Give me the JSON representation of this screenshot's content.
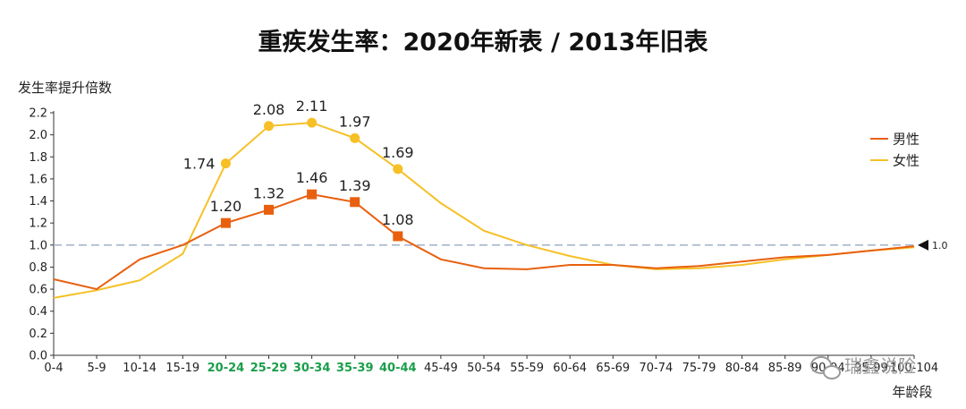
{
  "chart_data": {
    "type": "line",
    "title": "重疾发生率：2020年新表 / 2013年旧表",
    "ylabel": "发生率提升倍数",
    "xlabel": "年龄段",
    "ylim": [
      0,
      2.2
    ],
    "yticks": [
      "0.0",
      "0.2",
      "0.4",
      "0.6",
      "0.8",
      "1.0",
      "1.2",
      "1.4",
      "1.6",
      "1.8",
      "2.0",
      "2.2"
    ],
    "categories": [
      "0-4",
      "5-9",
      "10-14",
      "15-19",
      "20-24",
      "25-29",
      "30-34",
      "35-39",
      "40-44",
      "45-49",
      "50-54",
      "55-59",
      "60-64",
      "65-69",
      "70-74",
      "75-79",
      "80-84",
      "85-89",
      "90-94",
      "95-99",
      "100-104"
    ],
    "highlight_categories": [
      "20-24",
      "25-29",
      "30-34",
      "35-39",
      "40-44"
    ],
    "series": [
      {
        "name": "男性",
        "color": "#e8600f",
        "marker": "square",
        "values": [
          0.69,
          0.6,
          0.87,
          1.0,
          1.2,
          1.32,
          1.46,
          1.39,
          1.08,
          0.87,
          0.79,
          0.78,
          0.82,
          0.82,
          0.79,
          0.81,
          0.85,
          0.89,
          0.91,
          0.95,
          0.99
        ],
        "labels": [
          "",
          "",
          "",
          "",
          "1.20",
          "1.32",
          "1.46",
          "1.39",
          "1.08",
          "",
          "",
          "",
          "",
          "",
          "",
          "",
          "",
          "",
          "",
          "",
          ""
        ]
      },
      {
        "name": "女性",
        "color": "#f6c026",
        "marker": "circle",
        "values": [
          0.52,
          0.59,
          0.68,
          0.92,
          1.74,
          2.08,
          2.11,
          1.97,
          1.69,
          1.38,
          1.13,
          1.0,
          0.9,
          0.82,
          0.78,
          0.79,
          0.82,
          0.87,
          0.91,
          0.95,
          0.98
        ],
        "labels": [
          "",
          "",
          "",
          "",
          "1.74",
          "2.08",
          "2.11",
          "1.97",
          "1.69",
          "",
          "",
          "",
          "",
          "",
          "",
          "",
          "",
          "",
          "",
          "",
          ""
        ]
      }
    ],
    "reference_line": {
      "value": 1.0,
      "label": "1.0",
      "color": "#a7b7cc"
    },
    "grid": false,
    "legend_position": "top-right"
  },
  "watermark": "瑞鑫说险"
}
